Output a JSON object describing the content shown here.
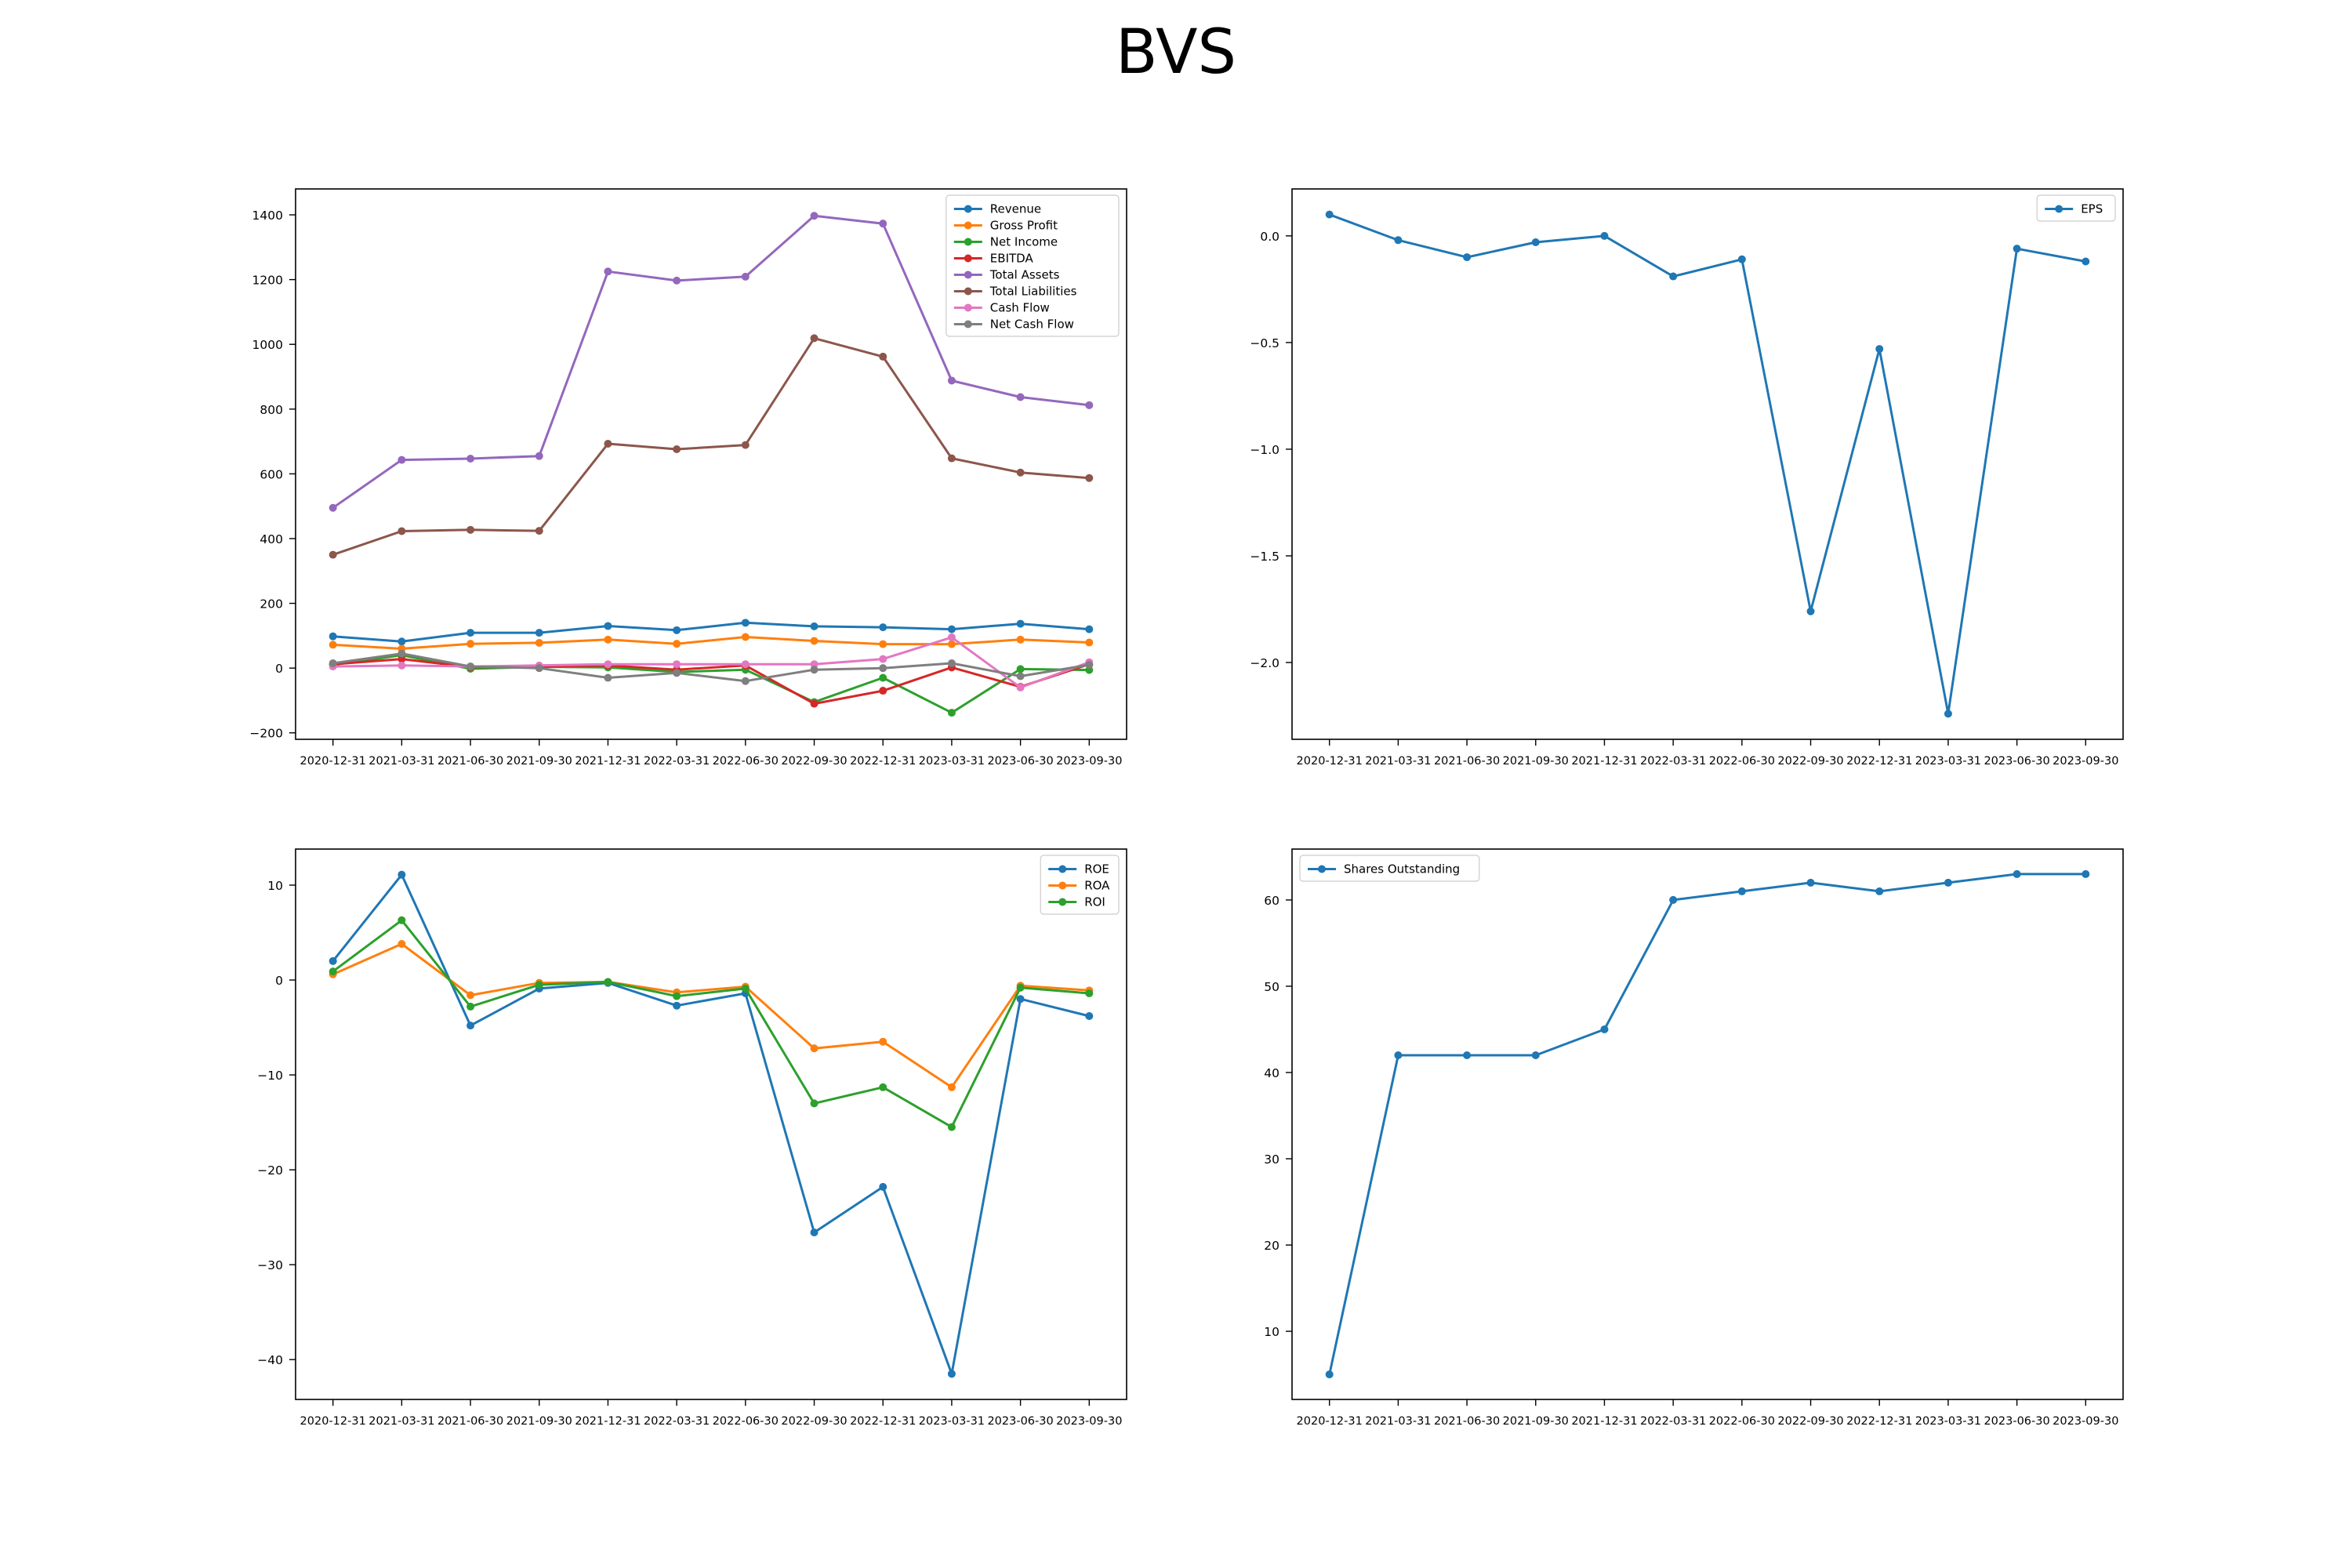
{
  "figure": {
    "title": "BVS"
  },
  "chart_data": [
    {
      "type": "line",
      "title": "",
      "xlabel": "",
      "ylabel": "",
      "x": [
        "2020-12-31",
        "2021-03-31",
        "2021-06-30",
        "2021-09-30",
        "2021-12-31",
        "2022-03-31",
        "2022-06-30",
        "2022-09-30",
        "2022-12-31",
        "2023-03-31",
        "2023-06-30",
        "2023-09-30"
      ],
      "ylim": [
        -220,
        1480
      ],
      "yticks": [
        -200,
        0,
        200,
        400,
        600,
        800,
        1000,
        1200,
        1400
      ],
      "grid": false,
      "legend": "upper right",
      "series": [
        {
          "name": "Revenue",
          "color": "#1f77b4",
          "values": [
            98,
            82,
            109,
            109,
            130,
            117,
            140,
            129,
            126,
            120,
            137,
            120
          ]
        },
        {
          "name": "Gross Profit",
          "color": "#ff7f0e",
          "values": [
            72,
            60,
            75,
            78,
            88,
            75,
            96,
            84,
            74,
            74,
            88,
            79
          ]
        },
        {
          "name": "Net Income",
          "color": "#2ca02c",
          "values": [
            10,
            40,
            -2,
            4,
            2,
            -12,
            -5,
            -105,
            -30,
            -138,
            -3,
            -6
          ]
        },
        {
          "name": "EBITDA",
          "color": "#d62728",
          "values": [
            12,
            28,
            3,
            5,
            8,
            -5,
            8,
            -110,
            -70,
            2,
            -58,
            12
          ]
        },
        {
          "name": "Total Assets",
          "color": "#9467bd",
          "values": [
            495,
            643,
            647,
            655,
            1225,
            1197,
            1209,
            1397,
            1373,
            888,
            837,
            812
          ]
        },
        {
          "name": "Total Liabilities",
          "color": "#8c564b",
          "values": [
            350,
            423,
            427,
            424,
            693,
            676,
            689,
            1019,
            962,
            648,
            604,
            587
          ]
        },
        {
          "name": "Cash Flow",
          "color": "#e377c2",
          "values": [
            5,
            8,
            5,
            8,
            12,
            12,
            12,
            12,
            28,
            95,
            -60,
            18
          ]
        },
        {
          "name": "Net Cash Flow",
          "color": "#7f7f7f",
          "values": [
            15,
            45,
            5,
            0,
            -30,
            -15,
            -40,
            -5,
            0,
            15,
            -25,
            10
          ]
        }
      ]
    },
    {
      "type": "line",
      "title": "",
      "xlabel": "",
      "ylabel": "",
      "x": [
        "2020-12-31",
        "2021-03-31",
        "2021-06-30",
        "2021-09-30",
        "2021-12-31",
        "2022-03-31",
        "2022-06-30",
        "2022-09-30",
        "2022-12-31",
        "2023-03-31",
        "2023-06-30",
        "2023-09-30"
      ],
      "ylim": [
        -2.36,
        0.22
      ],
      "yticks": [
        -2.0,
        -1.5,
        -1.0,
        -0.5,
        0.0
      ],
      "yticklabels": [
        "−2.0",
        "−1.5",
        "−1.0",
        "−0.5",
        "0.0"
      ],
      "grid": false,
      "legend": "upper right",
      "series": [
        {
          "name": "EPS",
          "color": "#1f77b4",
          "values": [
            0.1,
            -0.02,
            -0.1,
            -0.03,
            0.0,
            -0.19,
            -0.11,
            -1.76,
            -0.53,
            -2.24,
            -0.06,
            -0.12
          ]
        }
      ]
    },
    {
      "type": "line",
      "title": "",
      "xlabel": "",
      "ylabel": "",
      "x": [
        "2020-12-31",
        "2021-03-31",
        "2021-06-30",
        "2021-09-30",
        "2021-12-31",
        "2022-03-31",
        "2022-06-30",
        "2022-09-30",
        "2022-12-31",
        "2023-03-31",
        "2023-06-30",
        "2023-09-30"
      ],
      "ylim": [
        -44.2,
        13.8
      ],
      "yticks": [
        -40,
        -30,
        -20,
        -10,
        0,
        10
      ],
      "yticklabels": [
        "−40",
        "−30",
        "−20",
        "−10",
        "0",
        "10"
      ],
      "grid": false,
      "legend": "upper right",
      "series": [
        {
          "name": "ROE",
          "color": "#1f77b4",
          "values": [
            2.0,
            11.1,
            -4.8,
            -0.9,
            -0.3,
            -2.7,
            -1.4,
            -26.6,
            -21.8,
            -41.5,
            -2.0,
            -3.8
          ]
        },
        {
          "name": "ROA",
          "color": "#ff7f0e",
          "values": [
            0.6,
            3.8,
            -1.6,
            -0.3,
            -0.2,
            -1.3,
            -0.7,
            -7.2,
            -6.5,
            -11.3,
            -0.6,
            -1.1
          ]
        },
        {
          "name": "ROI",
          "color": "#2ca02c",
          "values": [
            0.9,
            6.3,
            -2.8,
            -0.5,
            -0.2,
            -1.7,
            -0.9,
            -13.0,
            -11.3,
            -15.5,
            -0.8,
            -1.4
          ]
        }
      ]
    },
    {
      "type": "line",
      "title": "",
      "xlabel": "",
      "ylabel": "",
      "x": [
        "2020-12-31",
        "2021-03-31",
        "2021-06-30",
        "2021-09-30",
        "2021-12-31",
        "2022-03-31",
        "2022-06-30",
        "2022-09-30",
        "2022-12-31",
        "2023-03-31",
        "2023-06-30",
        "2023-09-30"
      ],
      "ylim": [
        2.1,
        65.9
      ],
      "yticks": [
        10,
        20,
        30,
        40,
        50,
        60
      ],
      "grid": false,
      "legend": "upper left",
      "series": [
        {
          "name": "Shares Outstanding",
          "color": "#1f77b4",
          "values": [
            5,
            42,
            42,
            42,
            45,
            60,
            61,
            62,
            61,
            62,
            63,
            63
          ]
        }
      ]
    }
  ]
}
